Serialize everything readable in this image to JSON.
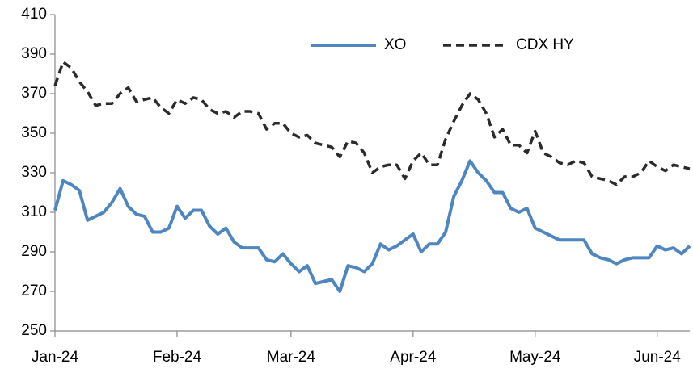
{
  "chart_data": {
    "type": "line",
    "categories": [
      "Jan-24",
      null,
      null,
      null,
      null,
      null,
      null,
      null,
      null,
      null,
      null,
      null,
      null,
      null,
      null,
      "Feb-24",
      null,
      null,
      null,
      null,
      null,
      null,
      null,
      null,
      null,
      null,
      null,
      null,
      null,
      "Mar-24",
      null,
      null,
      null,
      null,
      null,
      null,
      null,
      null,
      null,
      null,
      null,
      null,
      null,
      null,
      "Apr-24",
      null,
      null,
      null,
      null,
      null,
      null,
      null,
      null,
      null,
      null,
      null,
      null,
      null,
      null,
      "May-24",
      null,
      null,
      null,
      null,
      null,
      null,
      null,
      null,
      null,
      null,
      null,
      null,
      null,
      null,
      "Jun-24",
      null,
      null,
      null,
      null
    ],
    "series": [
      {
        "name": "XO",
        "color": "#4f86c0",
        "dash": false,
        "values": [
          311,
          326,
          324,
          321,
          306,
          308,
          310,
          315,
          322,
          313,
          309,
          308,
          300,
          300,
          302,
          313,
          307,
          311,
          311,
          303,
          299,
          302,
          295,
          292,
          292,
          292,
          286,
          285,
          289,
          284,
          280,
          283,
          274,
          275,
          276,
          270,
          283,
          282,
          280,
          284,
          294,
          291,
          293,
          296,
          299,
          290,
          294,
          294,
          300,
          318,
          326,
          336,
          330,
          326,
          320,
          320,
          312,
          310,
          312,
          302,
          300,
          298,
          296,
          296,
          296,
          296,
          289,
          287,
          286,
          284,
          286,
          287,
          287,
          287,
          293,
          291,
          292,
          289,
          293
        ]
      },
      {
        "name": "CDX HY",
        "color": "#2b2b2b",
        "dash": true,
        "values": [
          374,
          386,
          383,
          376,
          371,
          364,
          365,
          365,
          370,
          373,
          366,
          367,
          368,
          363,
          360,
          367,
          365,
          368,
          367,
          362,
          360,
          361,
          358,
          361,
          361,
          360,
          352,
          355,
          355,
          350,
          348,
          349,
          345,
          344,
          343,
          338,
          346,
          345,
          340,
          330,
          333,
          334,
          334,
          327,
          336,
          340,
          334,
          334,
          347,
          356,
          364,
          370,
          367,
          360,
          348,
          352,
          344,
          344,
          340,
          351,
          340,
          338,
          335,
          334,
          336,
          335,
          328,
          327,
          326,
          324,
          328,
          328,
          330,
          336,
          333,
          331,
          334,
          333,
          332
        ]
      }
    ],
    "ylim": [
      250,
      410
    ],
    "yticks": [
      250,
      270,
      290,
      310,
      330,
      350,
      370,
      390,
      410
    ],
    "grid": false,
    "legend": "top"
  }
}
